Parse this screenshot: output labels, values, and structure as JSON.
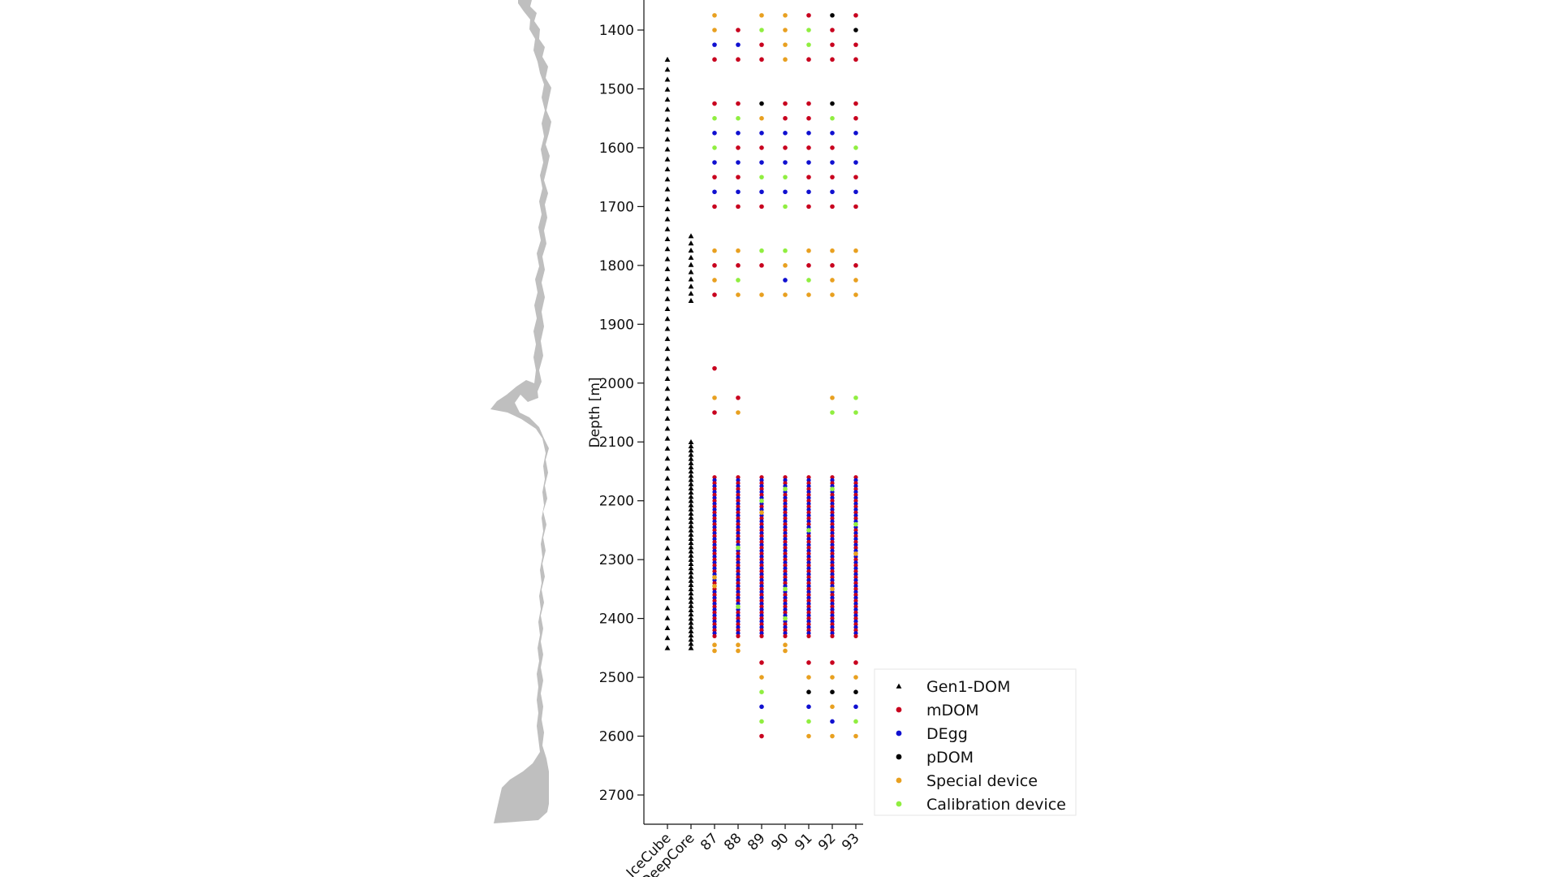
{
  "chart_data": {
    "type": "scatter",
    "ylabel": "Depth [m]",
    "y_ticks": [
      1400,
      1500,
      1600,
      1700,
      1800,
      1900,
      2000,
      2100,
      2200,
      2300,
      2400,
      2500,
      2600,
      2700
    ],
    "ylim": [
      1345,
      2750
    ],
    "y_inverted": true,
    "categories": [
      "IceCube",
      "DeepCore",
      "87",
      "88",
      "89",
      "90",
      "91",
      "92",
      "93"
    ],
    "colors": {
      "Gen1-DOM": "#000000",
      "mDOM": "#c8001e",
      "DEgg": "#1010d0",
      "pDOM": "#000000",
      "Special device": "#e8a020",
      "Calibration device": "#90ee40"
    },
    "legend": {
      "placement": "lower-right",
      "entries": [
        {
          "label": "Gen1-DOM",
          "marker": "triangle",
          "color": "#000000"
        },
        {
          "label": "mDOM",
          "marker": "circle",
          "color": "#c8001e"
        },
        {
          "label": "DEgg",
          "marker": "circle",
          "color": "#1010d0"
        },
        {
          "label": "pDOM",
          "marker": "circle",
          "color": "#000000"
        },
        {
          "label": "Special device",
          "marker": "circle",
          "color": "#e8a020"
        },
        {
          "label": "Calibration device",
          "marker": "circle",
          "color": "#90ee40"
        }
      ]
    },
    "gen1_strings": [
      {
        "category": "IceCube",
        "from": 1450,
        "to": 2450,
        "count": 60
      },
      {
        "category": "DeepCore",
        "from": 1750,
        "to": 1860,
        "count": 10
      },
      {
        "category": "DeepCore",
        "from": 2100,
        "to": 2450,
        "count": 50
      }
    ],
    "dense_sections": [
      {
        "categories": [
          "87",
          "88",
          "89",
          "90",
          "91",
          "92",
          "93"
        ],
        "from": 2160,
        "to": 2430,
        "count": 55,
        "pattern": [
          "mDOM",
          "DEgg"
        ]
      }
    ],
    "modules": {
      "87": [
        [
          1375,
          "Special device"
        ],
        [
          1400,
          "Special device"
        ],
        [
          1425,
          "DEgg"
        ],
        [
          1450,
          "mDOM"
        ],
        [
          1525,
          "mDOM"
        ],
        [
          1550,
          "Calibration device"
        ],
        [
          1575,
          "DEgg"
        ],
        [
          1600,
          "Calibration device"
        ],
        [
          1625,
          "DEgg"
        ],
        [
          1650,
          "mDOM"
        ],
        [
          1675,
          "DEgg"
        ],
        [
          1700,
          "mDOM"
        ],
        [
          1775,
          "Special device"
        ],
        [
          1800,
          "mDOM"
        ],
        [
          1825,
          "Special device"
        ],
        [
          1850,
          "mDOM"
        ],
        [
          1975,
          "mDOM"
        ],
        [
          2025,
          "Special device"
        ],
        [
          2050,
          "mDOM"
        ],
        [
          2330,
          "Special device"
        ],
        [
          2345,
          "Special device"
        ],
        [
          2445,
          "Special device"
        ],
        [
          2455,
          "Special device"
        ]
      ],
      "88": [
        [
          1400,
          "mDOM"
        ],
        [
          1425,
          "DEgg"
        ],
        [
          1450,
          "mDOM"
        ],
        [
          1525,
          "mDOM"
        ],
        [
          1550,
          "Calibration device"
        ],
        [
          1575,
          "DEgg"
        ],
        [
          1600,
          "mDOM"
        ],
        [
          1625,
          "DEgg"
        ],
        [
          1650,
          "mDOM"
        ],
        [
          1675,
          "DEgg"
        ],
        [
          1700,
          "mDOM"
        ],
        [
          1775,
          "Special device"
        ],
        [
          1800,
          "mDOM"
        ],
        [
          1825,
          "Calibration device"
        ],
        [
          1850,
          "Special device"
        ],
        [
          2025,
          "mDOM"
        ],
        [
          2050,
          "Special device"
        ],
        [
          2280,
          "Calibration device"
        ],
        [
          2380,
          "Calibration device"
        ],
        [
          2445,
          "Special device"
        ],
        [
          2455,
          "Special device"
        ]
      ],
      "89": [
        [
          1375,
          "Special device"
        ],
        [
          1400,
          "Calibration device"
        ],
        [
          1425,
          "mDOM"
        ],
        [
          1450,
          "mDOM"
        ],
        [
          1525,
          "pDOM"
        ],
        [
          1550,
          "Special device"
        ],
        [
          1575,
          "DEgg"
        ],
        [
          1600,
          "mDOM"
        ],
        [
          1625,
          "DEgg"
        ],
        [
          1650,
          "Calibration device"
        ],
        [
          1675,
          "DEgg"
        ],
        [
          1700,
          "mDOM"
        ],
        [
          1775,
          "Calibration device"
        ],
        [
          1800,
          "mDOM"
        ],
        [
          1850,
          "Special device"
        ],
        [
          2200,
          "Calibration device"
        ],
        [
          2220,
          "Special device"
        ],
        [
          2475,
          "mDOM"
        ],
        [
          2500,
          "Special device"
        ],
        [
          2525,
          "Calibration device"
        ],
        [
          2550,
          "DEgg"
        ],
        [
          2575,
          "Calibration device"
        ],
        [
          2600,
          "mDOM"
        ]
      ],
      "90": [
        [
          1375,
          "Special device"
        ],
        [
          1400,
          "Special device"
        ],
        [
          1425,
          "Special device"
        ],
        [
          1450,
          "Special device"
        ],
        [
          1525,
          "mDOM"
        ],
        [
          1550,
          "mDOM"
        ],
        [
          1575,
          "DEgg"
        ],
        [
          1600,
          "mDOM"
        ],
        [
          1625,
          "DEgg"
        ],
        [
          1650,
          "Calibration device"
        ],
        [
          1675,
          "DEgg"
        ],
        [
          1700,
          "Calibration device"
        ],
        [
          1775,
          "Calibration device"
        ],
        [
          1800,
          "Special device"
        ],
        [
          1825,
          "DEgg"
        ],
        [
          1850,
          "Special device"
        ],
        [
          2180,
          "Calibration device"
        ],
        [
          2350,
          "Calibration device"
        ],
        [
          2400,
          "Calibration device"
        ],
        [
          2445,
          "Special device"
        ],
        [
          2455,
          "Special device"
        ]
      ],
      "91": [
        [
          1375,
          "mDOM"
        ],
        [
          1400,
          "Calibration device"
        ],
        [
          1425,
          "Calibration device"
        ],
        [
          1450,
          "mDOM"
        ],
        [
          1525,
          "mDOM"
        ],
        [
          1550,
          "mDOM"
        ],
        [
          1575,
          "DEgg"
        ],
        [
          1600,
          "mDOM"
        ],
        [
          1625,
          "DEgg"
        ],
        [
          1650,
          "mDOM"
        ],
        [
          1675,
          "DEgg"
        ],
        [
          1700,
          "mDOM"
        ],
        [
          1775,
          "Special device"
        ],
        [
          1800,
          "mDOM"
        ],
        [
          1825,
          "Calibration device"
        ],
        [
          1850,
          "Special device"
        ],
        [
          2250,
          "Calibration device"
        ],
        [
          2475,
          "mDOM"
        ],
        [
          2500,
          "Special device"
        ],
        [
          2525,
          "pDOM"
        ],
        [
          2550,
          "DEgg"
        ],
        [
          2575,
          "Calibration device"
        ],
        [
          2600,
          "Special device"
        ]
      ],
      "92": [
        [
          1375,
          "pDOM"
        ],
        [
          1400,
          "mDOM"
        ],
        [
          1425,
          "mDOM"
        ],
        [
          1450,
          "mDOM"
        ],
        [
          1525,
          "pDOM"
        ],
        [
          1550,
          "Calibration device"
        ],
        [
          1575,
          "DEgg"
        ],
        [
          1600,
          "mDOM"
        ],
        [
          1625,
          "DEgg"
        ],
        [
          1650,
          "mDOM"
        ],
        [
          1675,
          "DEgg"
        ],
        [
          1700,
          "mDOM"
        ],
        [
          1775,
          "Special device"
        ],
        [
          1800,
          "mDOM"
        ],
        [
          1825,
          "Special device"
        ],
        [
          1850,
          "Special device"
        ],
        [
          2025,
          "Special device"
        ],
        [
          2050,
          "Calibration device"
        ],
        [
          2180,
          "Calibration device"
        ],
        [
          2350,
          "Special device"
        ],
        [
          2475,
          "mDOM"
        ],
        [
          2500,
          "Special device"
        ],
        [
          2525,
          "pDOM"
        ],
        [
          2550,
          "Special device"
        ],
        [
          2575,
          "DEgg"
        ],
        [
          2600,
          "Special device"
        ]
      ],
      "93": [
        [
          1375,
          "mDOM"
        ],
        [
          1400,
          "pDOM"
        ],
        [
          1425,
          "mDOM"
        ],
        [
          1450,
          "mDOM"
        ],
        [
          1525,
          "mDOM"
        ],
        [
          1550,
          "mDOM"
        ],
        [
          1575,
          "DEgg"
        ],
        [
          1600,
          "Calibration device"
        ],
        [
          1625,
          "DEgg"
        ],
        [
          1650,
          "mDOM"
        ],
        [
          1675,
          "DEgg"
        ],
        [
          1700,
          "mDOM"
        ],
        [
          1775,
          "Special device"
        ],
        [
          1800,
          "mDOM"
        ],
        [
          1825,
          "Special device"
        ],
        [
          1850,
          "Special device"
        ],
        [
          2025,
          "Calibration device"
        ],
        [
          2050,
          "Calibration device"
        ],
        [
          2240,
          "Calibration device"
        ],
        [
          2290,
          "Special device"
        ],
        [
          2475,
          "mDOM"
        ],
        [
          2500,
          "Special device"
        ],
        [
          2525,
          "pDOM"
        ],
        [
          2550,
          "DEgg"
        ],
        [
          2575,
          "Calibration device"
        ],
        [
          2600,
          "Special device"
        ]
      ]
    }
  }
}
